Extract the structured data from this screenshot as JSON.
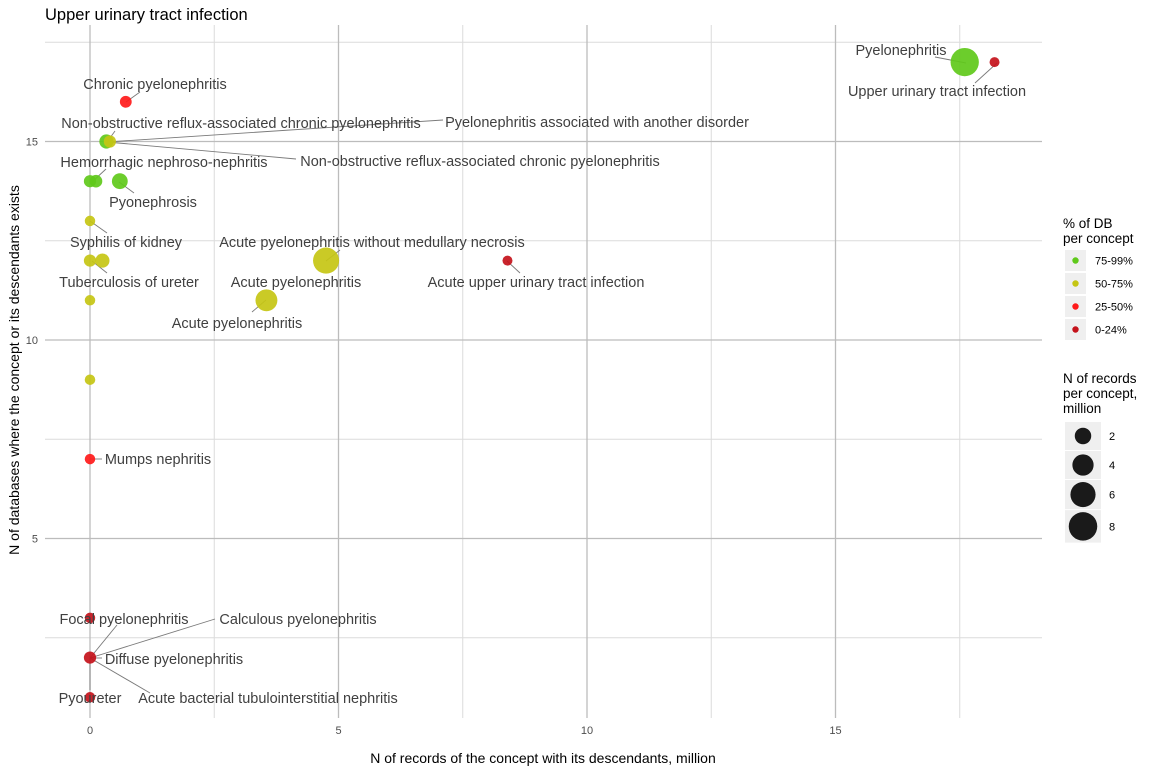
{
  "chart_data": {
    "type": "scatter",
    "title": "Upper urinary tract infection",
    "xlabel": "N of records of the concept with its descendants, million",
    "ylabel": "N of databases where the concept or its descendants exists",
    "xlim": [
      -0.9,
      19.1
    ],
    "ylim": [
      0.3,
      17.5
    ],
    "xticks": [
      0,
      5,
      10,
      15
    ],
    "yticks": [
      5,
      10,
      15
    ],
    "grid": true,
    "color_legend": {
      "title": [
        "% of DB",
        "per concept"
      ],
      "entries": [
        {
          "label": "75-99%",
          "color": "#5fc91a"
        },
        {
          "label": "50-75%",
          "color": "#c5c614"
        },
        {
          "label": "25-50%",
          "color": "#ff1a1a"
        },
        {
          "label": "0-24%",
          "color": "#c4121b"
        }
      ]
    },
    "size_legend": {
      "title": [
        "N of records",
        "per concept,",
        "million"
      ],
      "entries": [
        2,
        4,
        6,
        8
      ]
    },
    "points": [
      {
        "x": 17.6,
        "y": 17,
        "size": 7,
        "cat": 0
      },
      {
        "x": 18.2,
        "y": 17,
        "size": 0,
        "cat": 3
      },
      {
        "x": 0.72,
        "y": 16,
        "size": 0.4,
        "cat": 2
      },
      {
        "x": 0.33,
        "y": 15,
        "size": 1,
        "cat": 0
      },
      {
        "x": 0.4,
        "y": 15,
        "size": 0.5,
        "cat": 1
      },
      {
        "x": 0.0,
        "y": 14,
        "size": 0.5,
        "cat": 0
      },
      {
        "x": 0.12,
        "y": 14,
        "size": 0.6,
        "cat": 0
      },
      {
        "x": 0.6,
        "y": 14,
        "size": 1.5,
        "cat": 0
      },
      {
        "x": 0.0,
        "y": 13,
        "size": 0.1,
        "cat": 1
      },
      {
        "x": 0.0,
        "y": 12,
        "size": 0.5,
        "cat": 1
      },
      {
        "x": 0.25,
        "y": 12,
        "size": 1,
        "cat": 1
      },
      {
        "x": 4.75,
        "y": 12,
        "size": 5.8,
        "cat": 1
      },
      {
        "x": 3.55,
        "y": 11,
        "size": 3.8,
        "cat": 1
      },
      {
        "x": 8.4,
        "y": 12,
        "size": 0,
        "cat": 3
      },
      {
        "x": 0.0,
        "y": 11,
        "size": 0.1,
        "cat": 1
      },
      {
        "x": 0.0,
        "y": 9,
        "size": 0.1,
        "cat": 1
      },
      {
        "x": 0.0,
        "y": 7,
        "size": 0.1,
        "cat": 2
      },
      {
        "x": 0.0,
        "y": 3,
        "size": 0.1,
        "cat": 3
      },
      {
        "x": 0.0,
        "y": 2,
        "size": 0.5,
        "cat": 3
      },
      {
        "x": 0.0,
        "y": 1,
        "size": 0.1,
        "cat": 3
      }
    ],
    "labels": [
      "Pyelonephritis",
      "Upper urinary tract infection",
      "Chronic pyelonephritis",
      "Non-obstructive reflux-associated chronic pyelonephritis",
      "Pyelonephritis associated with another disorder",
      "Non-obstructive reflux-associated chronic pyelonephritis",
      "Hemorrhagic nephroso-nephritis",
      "Pyonephrosis",
      "Syphilis of kidney",
      "Tuberculosis of ureter",
      "Acute pyelonephritis without medullary necrosis",
      "Acute pyelonephritis",
      "Acute pyelonephritis",
      "Acute upper urinary tract infection",
      "Mumps nephritis",
      "Focal pyelonephritis",
      "Calculous pyelonephritis",
      "Diffuse pyelonephritis",
      "Pyoureter",
      "Acute bacterial tubulointerstitial nephritis"
    ]
  }
}
